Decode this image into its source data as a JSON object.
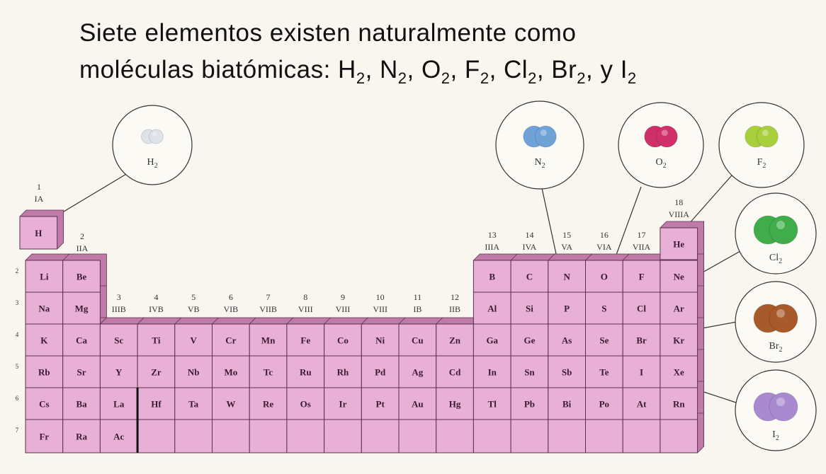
{
  "title": {
    "line1": "Siete elementos existen naturalmente como",
    "line2": [
      "moléculas biatómicas:  H",
      "2",
      ", N",
      "2",
      ", O",
      "2",
      ", F",
      "2",
      ", Cl",
      "2",
      ", Br",
      "2",
      ", y I",
      "2"
    ]
  },
  "groups": [
    {
      "number": 1,
      "roman": "IA"
    },
    {
      "number": 2,
      "roman": "IIA"
    },
    {
      "number": 3,
      "roman": "IIIB"
    },
    {
      "number": 4,
      "roman": "IVB"
    },
    {
      "number": 5,
      "roman": "VB"
    },
    {
      "number": 6,
      "roman": "VIB"
    },
    {
      "number": 7,
      "roman": "VIIB"
    },
    {
      "number": 8,
      "roman": "VIII"
    },
    {
      "number": 9,
      "roman": "VIII"
    },
    {
      "number": 10,
      "roman": "VIII"
    },
    {
      "number": 11,
      "roman": "IB"
    },
    {
      "number": 12,
      "roman": "IIB"
    },
    {
      "number": 13,
      "roman": "IIIA"
    },
    {
      "number": 14,
      "roman": "IVA"
    },
    {
      "number": 15,
      "roman": "VA"
    },
    {
      "number": 16,
      "roman": "VIA"
    },
    {
      "number": 17,
      "roman": "VIIA"
    },
    {
      "number": 18,
      "roman": "VIIIA"
    }
  ],
  "periods": [
    2,
    3,
    4,
    5,
    6,
    7
  ],
  "rows": [
    [
      "H",
      "He"
    ],
    [
      "Li",
      "Be",
      "B",
      "C",
      "N",
      "O",
      "F",
      "Ne"
    ],
    [
      "Na",
      "Mg",
      "Al",
      "Si",
      "P",
      "S",
      "Cl",
      "Ar"
    ],
    [
      "K",
      "Ca",
      "Sc",
      "Ti",
      "V",
      "Cr",
      "Mn",
      "Fe",
      "Co",
      "Ni",
      "Cu",
      "Zn",
      "Ga",
      "Ge",
      "As",
      "Se",
      "Br",
      "Kr"
    ],
    [
      "Rb",
      "Sr",
      "Y",
      "Zr",
      "Nb",
      "Mo",
      "Tc",
      "Ru",
      "Rh",
      "Pd",
      "Ag",
      "Cd",
      "In",
      "Sn",
      "Sb",
      "Te",
      "I",
      "Xe"
    ],
    [
      "Cs",
      "Ba",
      "La",
      "Hf",
      "Ta",
      "W",
      "Re",
      "Os",
      "Ir",
      "Pt",
      "Au",
      "Hg",
      "Tl",
      "Pb",
      "Bi",
      "Po",
      "At",
      "Rn"
    ],
    [
      "Fr",
      "Ra",
      "Ac"
    ]
  ],
  "molecules": [
    {
      "symbol": "H",
      "subscript": "2",
      "color": "#dfe2e8"
    },
    {
      "symbol": "N",
      "subscript": "2",
      "color": "#6fa3d8"
    },
    {
      "symbol": "O",
      "subscript": "2",
      "color": "#d0306a"
    },
    {
      "symbol": "F",
      "subscript": "2",
      "color": "#a8cf3c"
    },
    {
      "symbol": "Cl",
      "subscript": "2",
      "color": "#3fae4a"
    },
    {
      "symbol": "Br",
      "subscript": "2",
      "color": "#a85a2a"
    },
    {
      "symbol": "I",
      "subscript": "2",
      "color": "#a98ad0"
    }
  ]
}
